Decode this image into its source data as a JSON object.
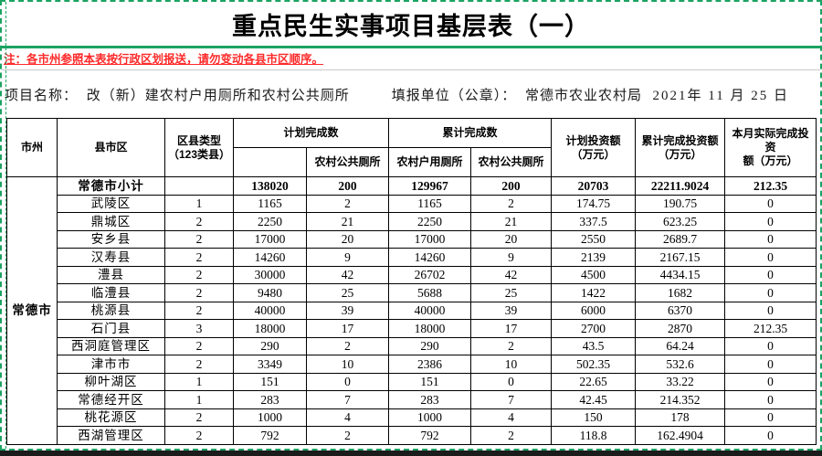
{
  "page": {
    "title": "重点民生实事项目基层表（一）",
    "note": "注：各市州参照本表按行政区划报送，请勿变动各县市区顺序。",
    "project": {
      "name_label": "项目名称：",
      "name_value": "改（新）建农村户用厕所和农村公共厕所",
      "unit_label": "填报单位（公章）：",
      "unit_value": "常德市农业农村局",
      "date": "2021年  11 月 25 日"
    }
  },
  "colors": {
    "page_border_green": "#1ba362",
    "note_red": "#fe2a2a",
    "table_border": "#000000",
    "separator_gray": "#c9c9c9",
    "bottom_bar": "#1b1b1b"
  },
  "table": {
    "headers": {
      "city": "市州",
      "county": "县市区",
      "county_type": "区县类型\n（123类县）",
      "planned_group": "计划完成数",
      "cumulative_group": "累计完成数",
      "planned_sub_blank": "",
      "planned_sub_public": "农村公共厕所",
      "cumulative_sub_household": "农村户用厕所",
      "cumulative_sub_public": "农村公共厕所",
      "planned_investment": "计划投资额\n（万元）",
      "cumulative_investment": "累计完成投资额\n（万元）",
      "monthly_investment": "本月实际完成投资\n额（万元）"
    },
    "city_merged": "常德市",
    "rows": [
      {
        "emphasis": true,
        "cells": [
          "常德市小计",
          "",
          "138020",
          "200",
          "129967",
          "200",
          "20703",
          "22211.9024",
          "212.35"
        ]
      },
      {
        "emphasis": false,
        "cells": [
          "武陵区",
          "1",
          "1165",
          "2",
          "1165",
          "2",
          "174.75",
          "190.75",
          "0"
        ]
      },
      {
        "emphasis": false,
        "cells": [
          "鼎城区",
          "2",
          "2250",
          "21",
          "2250",
          "21",
          "337.5",
          "623.25",
          "0"
        ]
      },
      {
        "emphasis": false,
        "cells": [
          "安乡县",
          "2",
          "17000",
          "20",
          "17000",
          "20",
          "2550",
          "2689.7",
          "0"
        ]
      },
      {
        "emphasis": false,
        "cells": [
          "汉寿县",
          "2",
          "14260",
          "9",
          "14260",
          "9",
          "2139",
          "2167.15",
          "0"
        ]
      },
      {
        "emphasis": false,
        "cells": [
          "澧县",
          "2",
          "30000",
          "42",
          "26702",
          "42",
          "4500",
          "4434.15",
          "0"
        ]
      },
      {
        "emphasis": false,
        "cells": [
          "临澧县",
          "2",
          "9480",
          "25",
          "5688",
          "25",
          "1422",
          "1682",
          "0"
        ]
      },
      {
        "emphasis": false,
        "cells": [
          "桃源县",
          "2",
          "40000",
          "39",
          "40000",
          "39",
          "6000",
          "6370",
          "0"
        ]
      },
      {
        "emphasis": false,
        "cells": [
          "石门县",
          "3",
          "18000",
          "17",
          "18000",
          "17",
          "2700",
          "2870",
          "212.35"
        ]
      },
      {
        "emphasis": false,
        "cells": [
          "西洞庭管理区",
          "2",
          "290",
          "2",
          "290",
          "2",
          "43.5",
          "64.24",
          "0"
        ]
      },
      {
        "emphasis": false,
        "cells": [
          "津市市",
          "2",
          "3349",
          "10",
          "2386",
          "10",
          "502.35",
          "532.6",
          "0"
        ]
      },
      {
        "emphasis": false,
        "cells": [
          "柳叶湖区",
          "1",
          "151",
          "0",
          "151",
          "0",
          "22.65",
          "33.22",
          "0"
        ]
      },
      {
        "emphasis": false,
        "cells": [
          "常德经开区",
          "1",
          "283",
          "7",
          "283",
          "7",
          "42.45",
          "214.352",
          "0"
        ]
      },
      {
        "emphasis": false,
        "cells": [
          "桃花源区",
          "2",
          "1000",
          "4",
          "1000",
          "4",
          "150",
          "178",
          "0"
        ]
      },
      {
        "emphasis": false,
        "cells": [
          "西湖管理区",
          "2",
          "792",
          "2",
          "792",
          "2",
          "118.8",
          "162.4904",
          "0"
        ]
      }
    ]
  }
}
